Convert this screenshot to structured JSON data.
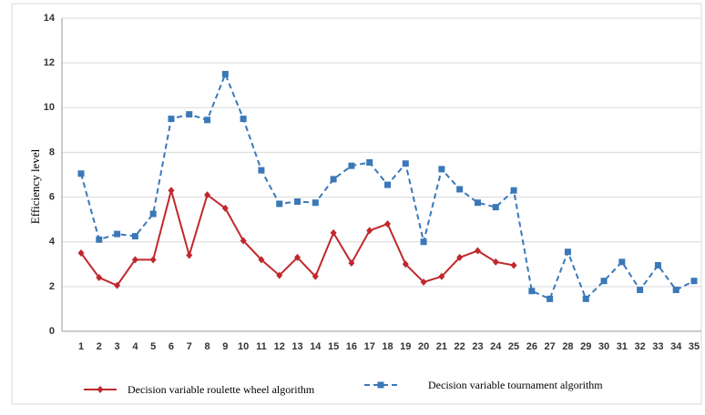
{
  "chart_data": {
    "type": "line",
    "y_label": "Efficiency level",
    "categories": [
      "1",
      "2",
      "3",
      "4",
      "5",
      "6",
      "7",
      "8",
      "9",
      "10",
      "11",
      "12",
      "13",
      "14",
      "15",
      "16",
      "17",
      "18",
      "19",
      "20",
      "21",
      "22",
      "23",
      "24",
      "25",
      "26",
      "27",
      "28",
      "29",
      "30",
      "31",
      "32",
      "33",
      "34",
      "35"
    ],
    "series": [
      {
        "name": "Decision variable roulette wheel algorithm",
        "color": "#c0282d",
        "dashed": false,
        "marker": "diamond",
        "values": [
          3.5,
          2.4,
          2.05,
          3.2,
          3.2,
          6.3,
          3.4,
          6.1,
          5.5,
          4.05,
          3.2,
          2.5,
          3.3,
          2.45,
          4.4,
          3.05,
          4.5,
          4.8,
          3.0,
          2.2,
          2.45,
          3.3,
          3.6,
          3.1,
          2.95,
          null,
          null,
          null,
          null,
          null,
          null,
          null,
          null,
          null,
          null
        ]
      },
      {
        "name": "Decision variable tournament algorithm",
        "color": "#3a78b8",
        "dashed": true,
        "marker": "square",
        "values": [
          7.05,
          4.1,
          4.35,
          4.25,
          5.25,
          9.5,
          9.7,
          9.45,
          11.5,
          9.5,
          7.2,
          5.7,
          5.8,
          5.75,
          6.8,
          7.4,
          7.55,
          6.55,
          7.5,
          4.0,
          7.25,
          6.35,
          5.75,
          5.55,
          6.3,
          1.8,
          1.45,
          3.55,
          1.45,
          2.25,
          3.1,
          1.85,
          2.95,
          1.85,
          2.25
        ]
      }
    ],
    "ylim": [
      0,
      14
    ],
    "yticks": [
      0,
      2,
      4,
      6,
      8,
      10,
      12,
      14
    ],
    "grid": true
  }
}
